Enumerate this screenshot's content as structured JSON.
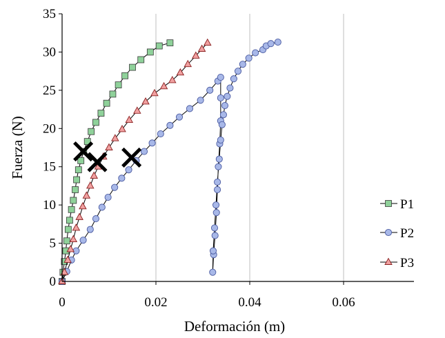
{
  "chart_data": {
    "type": "scatter",
    "xlabel": "Deformación (m)",
    "ylabel": "Fuerza (N)",
    "xlim": [
      0,
      0.075
    ],
    "ylim": [
      0,
      35
    ],
    "x_ticks": [
      0,
      0.02,
      0.04,
      0.06
    ],
    "x_tick_labels": [
      "0",
      "0.02",
      "0.04",
      "0.06"
    ],
    "y_ticks": [
      0,
      5,
      10,
      15,
      20,
      25,
      30,
      35
    ],
    "y_tick_labels": [
      "0",
      "5",
      "10",
      "15",
      "20",
      "25",
      "30",
      "35"
    ],
    "grid": "vertical",
    "legend_position": "right",
    "series": [
      {
        "name": "P1",
        "marker": "square",
        "color": "#8fd19a",
        "points": [
          [
            0,
            0
          ],
          [
            0.0002,
            1.2
          ],
          [
            0.0005,
            2.6
          ],
          [
            0.0008,
            4.0
          ],
          [
            0.001,
            5.3
          ],
          [
            0.0013,
            6.8
          ],
          [
            0.0016,
            8.0
          ],
          [
            0.002,
            9.4
          ],
          [
            0.0024,
            10.6
          ],
          [
            0.0028,
            12.0
          ],
          [
            0.0031,
            13.3
          ],
          [
            0.0035,
            14.6
          ],
          [
            0.004,
            15.8
          ],
          [
            0.0046,
            17.0
          ],
          [
            0.0054,
            18.3
          ],
          [
            0.0062,
            19.6
          ],
          [
            0.0072,
            20.8
          ],
          [
            0.0083,
            22.0
          ],
          [
            0.0095,
            23.3
          ],
          [
            0.0108,
            24.5
          ],
          [
            0.012,
            25.7
          ],
          [
            0.0134,
            26.9
          ],
          [
            0.015,
            28.0
          ],
          [
            0.0168,
            29.0
          ],
          [
            0.0188,
            30.0
          ],
          [
            0.0207,
            30.8
          ],
          [
            0.023,
            31.2
          ]
        ]
      },
      {
        "name": "P2",
        "marker": "circle",
        "color": "#a8b8e8",
        "points": [
          [
            0,
            0
          ],
          [
            0.001,
            1.3
          ],
          [
            0.002,
            2.8
          ],
          [
            0.003,
            4.0
          ],
          [
            0.0045,
            5.4
          ],
          [
            0.006,
            6.8
          ],
          [
            0.0072,
            8.2
          ],
          [
            0.0085,
            9.7
          ],
          [
            0.0098,
            11.0
          ],
          [
            0.0112,
            12.3
          ],
          [
            0.0127,
            13.5
          ],
          [
            0.0142,
            14.6
          ],
          [
            0.0158,
            15.8
          ],
          [
            0.0175,
            17.0
          ],
          [
            0.0192,
            18.1
          ],
          [
            0.021,
            19.3
          ],
          [
            0.023,
            20.4
          ],
          [
            0.025,
            21.5
          ],
          [
            0.0272,
            22.6
          ],
          [
            0.0295,
            23.7
          ],
          [
            0.0315,
            25.0
          ],
          [
            0.0332,
            26.2
          ],
          [
            0.0338,
            26.7
          ],
          [
            0.0338,
            24.0
          ],
          [
            0.0338,
            21.0
          ],
          [
            0.0336,
            18.0
          ],
          [
            0.0333,
            15.0
          ],
          [
            0.0331,
            12.0
          ],
          [
            0.0329,
            9.0
          ],
          [
            0.0326,
            6.0
          ],
          [
            0.0323,
            3.5
          ],
          [
            0.0321,
            1.2
          ],
          [
            0.0322,
            4.0
          ],
          [
            0.0325,
            7.0
          ],
          [
            0.0328,
            10.0
          ],
          [
            0.0331,
            13.0
          ],
          [
            0.0335,
            16.0
          ],
          [
            0.0338,
            18.5
          ],
          [
            0.0341,
            20.5
          ],
          [
            0.0344,
            21.8
          ],
          [
            0.0347,
            23.0
          ],
          [
            0.0352,
            24.2
          ],
          [
            0.0358,
            25.3
          ],
          [
            0.0366,
            26.5
          ],
          [
            0.0375,
            27.5
          ],
          [
            0.0385,
            28.4
          ],
          [
            0.0398,
            29.2
          ],
          [
            0.0412,
            29.9
          ],
          [
            0.0428,
            30.3
          ],
          [
            0.0435,
            30.8
          ],
          [
            0.0445,
            31.1
          ],
          [
            0.046,
            31.3
          ]
        ]
      },
      {
        "name": "P3",
        "marker": "triangle",
        "color": "#f0a0a0",
        "points": [
          [
            0,
            0
          ],
          [
            0.0005,
            1.2
          ],
          [
            0.0012,
            2.8
          ],
          [
            0.0018,
            4.2
          ],
          [
            0.0024,
            5.5
          ],
          [
            0.003,
            7.0
          ],
          [
            0.0037,
            8.4
          ],
          [
            0.0044,
            9.8
          ],
          [
            0.0052,
            11.2
          ],
          [
            0.006,
            12.5
          ],
          [
            0.0068,
            13.8
          ],
          [
            0.0077,
            15.0
          ],
          [
            0.0088,
            16.3
          ],
          [
            0.01,
            17.5
          ],
          [
            0.0113,
            18.7
          ],
          [
            0.0128,
            19.9
          ],
          [
            0.0143,
            21.1
          ],
          [
            0.016,
            22.3
          ],
          [
            0.0178,
            23.5
          ],
          [
            0.0197,
            24.6
          ],
          [
            0.0217,
            25.5
          ],
          [
            0.0235,
            26.3
          ],
          [
            0.0252,
            27.3
          ],
          [
            0.0268,
            28.4
          ],
          [
            0.0285,
            29.5
          ],
          [
            0.0298,
            30.4
          ],
          [
            0.031,
            31.2
          ]
        ]
      }
    ],
    "failure_markers": [
      [
        0.0045,
        17.0
      ],
      [
        0.0075,
        15.6
      ],
      [
        0.0148,
        16.2
      ]
    ]
  }
}
